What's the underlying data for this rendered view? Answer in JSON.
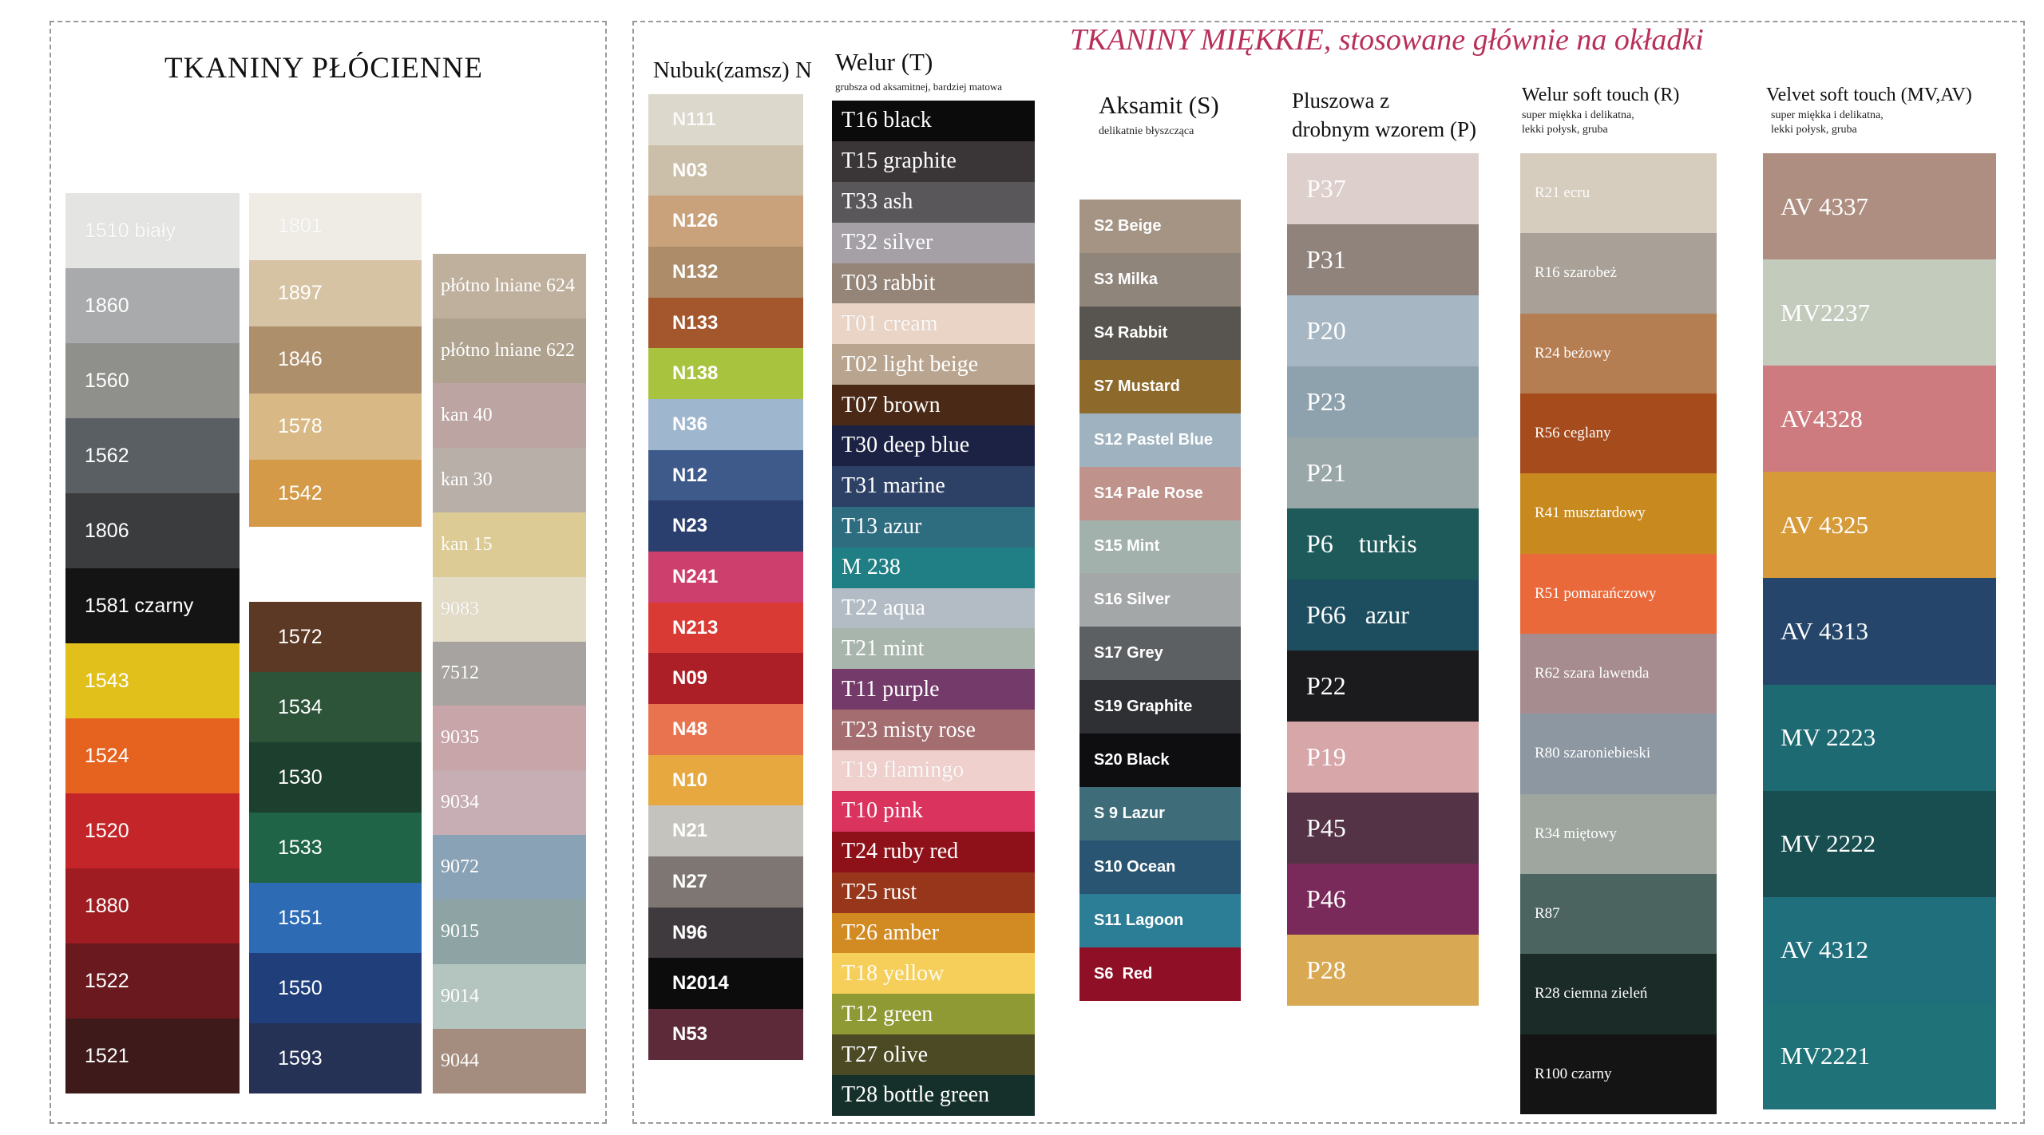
{
  "left_title": "TKANINY PŁÓCIENNE",
  "right_title": "TKANINY MIĘKKIE,  stosowane głównie na okładki",
  "columns": {
    "c1": {
      "swatches": [
        {
          "label": "1510 biały",
          "color": "#e4e4e2"
        },
        {
          "label": "1860",
          "color": "#a9aaab"
        },
        {
          "label": "1560",
          "color": "#8f8f8b"
        },
        {
          "label": "1562",
          "color": "#5a5f64"
        },
        {
          "label": "1806",
          "color": "#3b3c3e"
        },
        {
          "label": "1581 czarny",
          "color": "#141414"
        },
        {
          "label": "1543",
          "color": "#e2c01c"
        },
        {
          "label": "1524",
          "color": "#e6631f"
        },
        {
          "label": "1520",
          "color": "#c42528"
        },
        {
          "label": "1880",
          "color": "#9f1d22"
        },
        {
          "label": "1522",
          "color": "#6a1a1e"
        },
        {
          "label": "1521",
          "color": "#3e1a1a"
        }
      ]
    },
    "c2a": {
      "swatches": [
        {
          "label": "1801",
          "color": "#efece5"
        },
        {
          "label": "1897",
          "color": "#d6c3a4"
        },
        {
          "label": "1846",
          "color": "#ad8f6c"
        },
        {
          "label": "1578",
          "color": "#d8b985"
        },
        {
          "label": "1542",
          "color": "#d59a48"
        }
      ]
    },
    "c2b": {
      "swatches": [
        {
          "label": "1572",
          "color": "#5b3924"
        },
        {
          "label": "1534",
          "color": "#2d5439"
        },
        {
          "label": "1530",
          "color": "#1d3f2d"
        },
        {
          "label": "1533",
          "color": "#1f6446"
        },
        {
          "label": "1551",
          "color": "#2d6bb5"
        },
        {
          "label": "1550",
          "color": "#203f7a"
        },
        {
          "label": "1593",
          "color": "#263156"
        }
      ]
    },
    "c3": {
      "swatches": [
        {
          "label": "płótno lniane 624",
          "color": "#bfb09d"
        },
        {
          "label": "płótno lniane 622",
          "color": "#aea18d"
        },
        {
          "label": "kan 40",
          "color": "#bca4a2"
        },
        {
          "label": "kan 30",
          "color": "#b8b0a8"
        },
        {
          "label": "kan 15",
          "color": "#dccb95"
        },
        {
          "label": "9083",
          "color": "#e2dbc6"
        },
        {
          "label": "7512",
          "color": "#a6a3a0"
        },
        {
          "label": "9035",
          "color": "#c8a5a8"
        },
        {
          "label": "9034",
          "color": "#c6aeb4"
        },
        {
          "label": "9072",
          "color": "#8aa2b6"
        },
        {
          "label": "9015",
          "color": "#8ea4a4"
        },
        {
          "label": "9014",
          "color": "#b4c4bf"
        },
        {
          "label": "9044",
          "color": "#a48d7e"
        }
      ]
    },
    "nubuk": {
      "header": "Nubuk(zamsz) N",
      "swatches": [
        {
          "label": "N111",
          "color": "#ddd8cc"
        },
        {
          "label": "N03",
          "color": "#cbbfaa"
        },
        {
          "label": "N126",
          "color": "#c9a27c"
        },
        {
          "label": "N132",
          "color": "#ad8c6a"
        },
        {
          "label": "N133",
          "color": "#a4562c"
        },
        {
          "label": "N138",
          "color": "#a8c33e"
        },
        {
          "label": "N36",
          "color": "#9fb6cf"
        },
        {
          "label": "N12",
          "color": "#3e5a8a"
        },
        {
          "label": "N23",
          "color": "#2b3f6e"
        },
        {
          "label": "N241",
          "color": "#cd3f6c"
        },
        {
          "label": "N213",
          "color": "#d93a33"
        },
        {
          "label": "N09",
          "color": "#ad1f27"
        },
        {
          "label": "N48",
          "color": "#e8734e"
        },
        {
          "label": "N10",
          "color": "#e7a93f"
        },
        {
          "label": "N21",
          "color": "#c4c3bd"
        },
        {
          "label": "N27",
          "color": "#7d7672"
        },
        {
          "label": "N96",
          "color": "#3f3a3d"
        },
        {
          "label": "N2014",
          "color": "#0c0c0c"
        },
        {
          "label": "N53",
          "color": "#5c2a38"
        }
      ]
    },
    "welur": {
      "header": "Welur (T)",
      "subheader": "grubsza od aksamitnej, bardziej matowa",
      "swatches": [
        {
          "label": "T16 black",
          "color": "#0b0b0b"
        },
        {
          "label": "T15 graphite",
          "color": "#3a3536"
        },
        {
          "label": "T33 ash",
          "color": "#5a575a"
        },
        {
          "label": "T32 silver",
          "color": "#a4a0a6"
        },
        {
          "label": "T03 rabbit",
          "color": "#958578"
        },
        {
          "label": "T01 cream",
          "color": "#ead4c6"
        },
        {
          "label": "T02 light beige",
          "color": "#b9a58f"
        },
        {
          "label": "T07 brown",
          "color": "#4a2a17"
        },
        {
          "label": "T30 deep blue",
          "color": "#1c2243"
        },
        {
          "label": "T31 marine",
          "color": "#2d4166"
        },
        {
          "label": "T13 azur",
          "color": "#2e6c80"
        },
        {
          "label": "M 238",
          "color": "#1f7f84"
        },
        {
          "label": "T22 aqua",
          "color": "#b3bcc4"
        },
        {
          "label": "T21 mint",
          "color": "#a8b5ac"
        },
        {
          "label": "T11 purple",
          "color": "#733a6a"
        },
        {
          "label": "T23 misty rose",
          "color": "#a46d6f"
        },
        {
          "label": "T19 flamingo",
          "color": "#f0d0cd"
        },
        {
          "label": "T10 pink",
          "color": "#d9335e"
        },
        {
          "label": "T24 ruby red",
          "color": "#8e1119"
        },
        {
          "label": "T25 rust",
          "color": "#97361a"
        },
        {
          "label": "T26 amber",
          "color": "#d28a22"
        },
        {
          "label": "T18 yellow",
          "color": "#f5cf5a"
        },
        {
          "label": "T12 green",
          "color": "#8f9a34"
        },
        {
          "label": "T27 olive",
          "color": "#4c4a25"
        },
        {
          "label": "T28 bottle green",
          "color": "#15302a"
        }
      ]
    },
    "aksamit": {
      "header": "Aksamit (S)",
      "subheader": "delikatnie błyszcząca",
      "swatches": [
        {
          "label": "S2 Beige",
          "color": "#a59484"
        },
        {
          "label": "S3 Milka",
          "color": "#90857b"
        },
        {
          "label": "S4 Rabbit",
          "color": "#58544f"
        },
        {
          "label": "S7 Mustard",
          "color": "#8d6a2b"
        },
        {
          "label": "S12 Pastel Blue",
          "color": "#9fb2c0"
        },
        {
          "label": "S14 Pale Rose",
          "color": "#bf928c"
        },
        {
          "label": "S15 Mint",
          "color": "#a3b1ad"
        },
        {
          "label": "S16 Silver",
          "color": "#a4a7a7"
        },
        {
          "label": "S17 Grey",
          "color": "#5d6062"
        },
        {
          "label": "S19 Graphite",
          "color": "#2f3034"
        },
        {
          "label": "S20 Black",
          "color": "#0e0e10"
        },
        {
          "label": "S 9 Lazur",
          "color": "#3e6d79"
        },
        {
          "label": "S10 Ocean",
          "color": "#2a5572"
        },
        {
          "label": "S11 Lagoon",
          "color": "#2c7e96"
        },
        {
          "label": "S6  Red",
          "color": "#8e0f26"
        }
      ]
    },
    "plusz": {
      "header": "Pluszowa z\ndrobnym wzorem (P)",
      "swatches": [
        {
          "label": "P37",
          "color": "#ddcfcb"
        },
        {
          "label": "P31",
          "color": "#8f837b"
        },
        {
          "label": "P20",
          "color": "#a6b6c2"
        },
        {
          "label": "P23",
          "color": "#8ea2ae"
        },
        {
          "label": "P21",
          "color": "#9aa7a8"
        },
        {
          "label": "P6    turkis",
          "color": "#1e5a5a"
        },
        {
          "label": "P66   azur",
          "color": "#1d4e5f"
        },
        {
          "label": "P22",
          "color": "#1b1a1d"
        },
        {
          "label": "P19",
          "color": "#d7a6a8"
        },
        {
          "label": "P45",
          "color": "#543346"
        },
        {
          "label": "P46",
          "color": "#7a2a5a"
        },
        {
          "label": "P28",
          "color": "#d8a852"
        }
      ]
    },
    "soft": {
      "header": "Welur soft touch (R)",
      "subheader": "super miękka i delikatna,\nlekki połysk, gruba",
      "swatches": [
        {
          "label": "R21 ecru",
          "color": "#d7cdbf"
        },
        {
          "label": "R16 szarobeż",
          "color": "#a9a197"
        },
        {
          "label": "R24 beżowy",
          "color": "#b57d52"
        },
        {
          "label": "R56 ceglany",
          "color": "#a54b1c"
        },
        {
          "label": "R41 musztardowy",
          "color": "#c88a1f"
        },
        {
          "label": "R51 pomarańczowy",
          "color": "#e9693a"
        },
        {
          "label": "R62 szara lawenda",
          "color": "#a68c8e"
        },
        {
          "label": "R80 szaroniebieski",
          "color": "#8c97a2"
        },
        {
          "label": "R34 miętowy",
          "color": "#9ea69f"
        },
        {
          "label": "R87",
          "color": "#4b6460"
        },
        {
          "label": "R28 ciemna zieleń",
          "color": "#1b2b27"
        },
        {
          "label": "R100 czarny",
          "color": "#141414"
        }
      ]
    },
    "velvet": {
      "header": "Velvet soft touch (MV,AV)",
      "subheader": "super miękka i delikatna,\nlekki połysk, gruba",
      "swatches": [
        {
          "label": "AV 4337",
          "color": "#ae8e80"
        },
        {
          "label": "MV2237",
          "color": "#c3cbbd"
        },
        {
          "label": "AV4328",
          "color": "#cd7b7e"
        },
        {
          "label": "AV 4325",
          "color": "#d69a38"
        },
        {
          "label": "AV 4313",
          "color": "#25466a"
        },
        {
          "label": "MV 2223",
          "color": "#1d6a72"
        },
        {
          "label": "MV 2222",
          "color": "#184e50"
        },
        {
          "label": "AV 4312",
          "color": "#1f6f7c"
        },
        {
          "label": "MV2221",
          "color": "#1e7278"
        }
      ]
    }
  }
}
